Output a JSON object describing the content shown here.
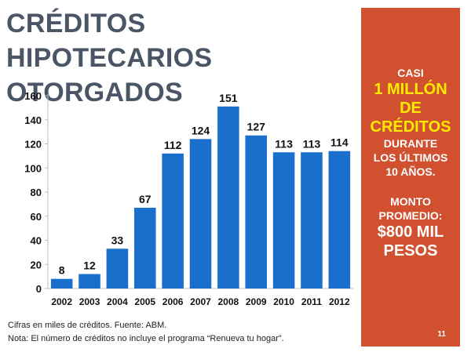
{
  "title": {
    "line1": "CRÉDITOS HIPOTECARIOS",
    "line2": "OTORGADOS"
  },
  "chart_data": {
    "type": "bar",
    "categories": [
      "2002",
      "2003",
      "2004",
      "2005",
      "2006",
      "2007",
      "2008",
      "2009",
      "2010",
      "2011",
      "2012"
    ],
    "values": [
      8,
      12,
      33,
      67,
      112,
      124,
      151,
      127,
      113,
      113,
      114
    ],
    "title": "",
    "xlabel": "",
    "ylabel": "",
    "ylim": [
      0,
      160
    ],
    "yticks": [
      0,
      20,
      40,
      60,
      80,
      100,
      120,
      140,
      160
    ],
    "data_labels": true,
    "grid": false,
    "bar_color": "#1b6fcc"
  },
  "notes": {
    "line1": "Cifras en miles de créditos. Fuente: ABM.",
    "line2": "Nota: El número de créditos no incluye el programa “Renueva tu hogar”."
  },
  "panel": {
    "l1": "CASI",
    "l2": "1 MILLÓN",
    "l3": "DE",
    "l4": "CRÉDITOS",
    "l5": "DURANTE",
    "l6": "LOS ÚLTIMOS",
    "l7": "10 AÑOS.",
    "l8": "MONTO",
    "l9": "PROMEDIO:",
    "l10": "$800 MIL",
    "l11": "PESOS",
    "slide_number": "11"
  },
  "colors": {
    "panel_bg": "#d1502f",
    "highlight": "#ffeb00",
    "title": "#4a5666"
  }
}
